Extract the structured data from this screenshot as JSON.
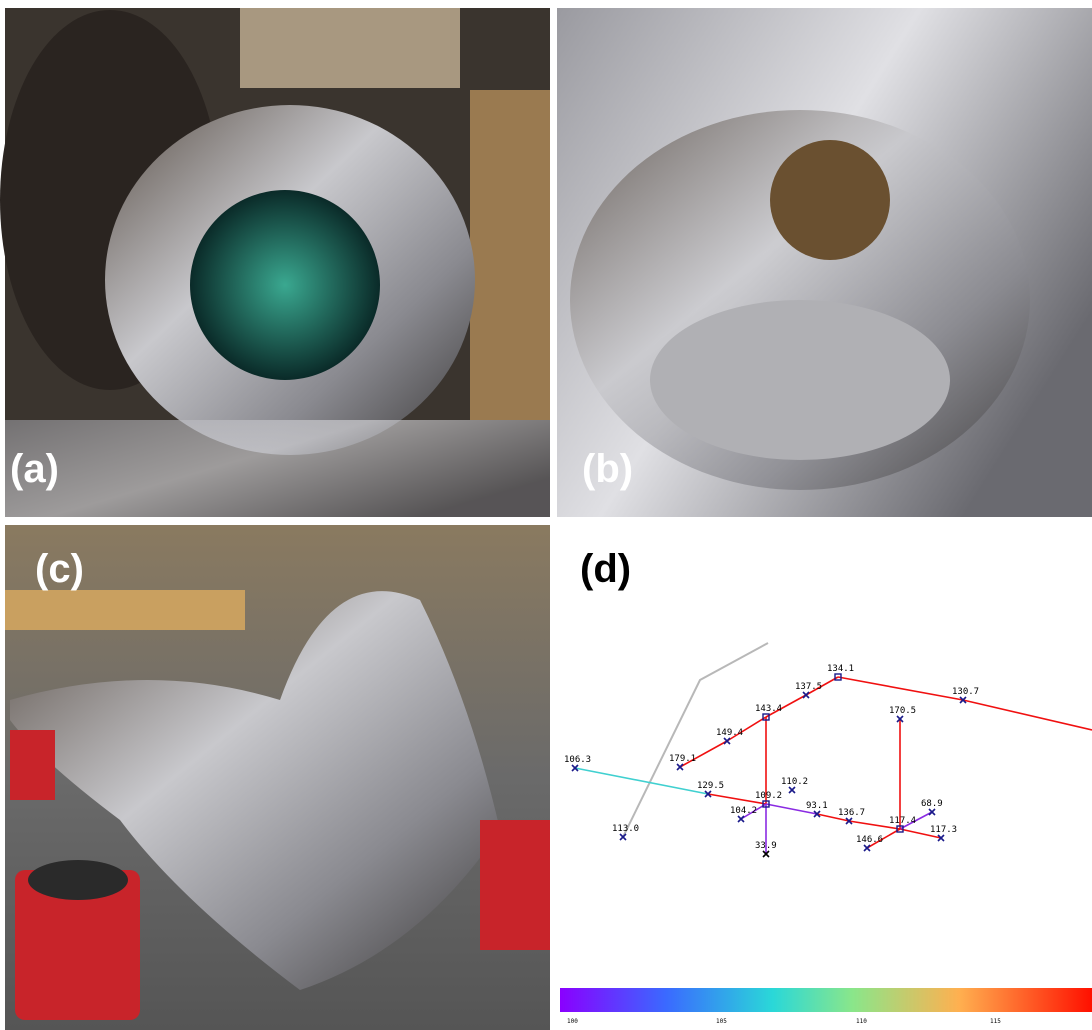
{
  "panels": [
    {
      "label": "(a)"
    },
    {
      "label": "(b)"
    },
    {
      "label": "(c)"
    },
    {
      "label": "(d)"
    }
  ],
  "diagram": {
    "nodes": [
      {
        "label": "106.3"
      },
      {
        "label": "113.0"
      },
      {
        "label": "179.1"
      },
      {
        "label": "149.4"
      },
      {
        "label": "143.4"
      },
      {
        "label": "137.5"
      },
      {
        "label": "134.1"
      },
      {
        "label": "130.7"
      },
      {
        "label": "170.5"
      },
      {
        "label": "129.5"
      },
      {
        "label": "110.2"
      },
      {
        "label": "109.2"
      },
      {
        "label": "104.2"
      },
      {
        "label": "93.1"
      },
      {
        "label": "136.7"
      },
      {
        "label": "68.9"
      },
      {
        "label": "117.4"
      },
      {
        "label": "146.6"
      },
      {
        "label": "117.3"
      },
      {
        "label": "33.9"
      }
    ],
    "colorbar_ticks": [
      "100",
      "105",
      "110",
      "115"
    ]
  }
}
